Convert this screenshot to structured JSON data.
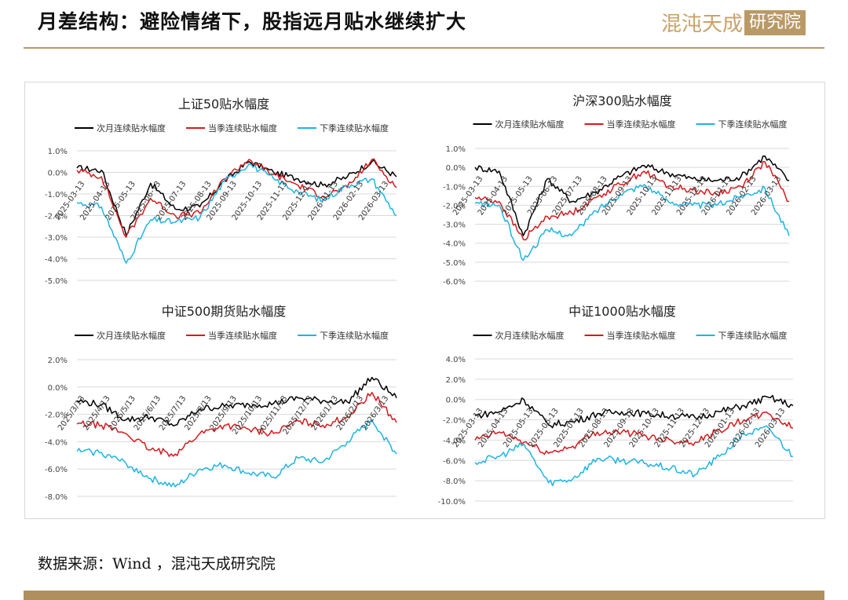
{
  "header": {
    "title": "月差结构：避险情绪下，股指远月贴水继续扩大",
    "brand_part1": "混沌天成",
    "brand_part2": "研究院"
  },
  "footer": {
    "source": "数据来源：Wind ，混沌天成研究院"
  },
  "colors": {
    "next_month": "#000000",
    "current_quarter": "#d7191c",
    "next_quarter": "#1fb4e2",
    "accent": "#b99a67"
  },
  "chart_data": [
    {
      "id": "sz50",
      "type": "line",
      "title": "上证50贴水幅度",
      "legend": [
        "次月连续贴水幅度",
        "当季连续贴水幅度",
        "下季连续贴水幅度"
      ],
      "yticks": [
        "1.0%",
        "0.0%",
        "-1.0%",
        "-2.0%",
        "-3.0%",
        "-4.0%",
        "-5.0%"
      ],
      "ylim": [
        -5,
        1
      ],
      "xticks": [
        "2025-03-13",
        "2025-04-13",
        "2025-05-13",
        "2025-06-13",
        "2025-07-13",
        "2025-08-13",
        "2025-09-13",
        "2025-10-13",
        "2025-11-13",
        "2025-12-13",
        "2026-01-13",
        "2026-02-13",
        "2026-03-13"
      ],
      "x": [
        "2025-03",
        "2025-04",
        "2025-04b",
        "2025-05",
        "2025-06",
        "2025-07",
        "2025-08",
        "2025-09",
        "2025-10",
        "2025-11",
        "2025-12",
        "2026-01",
        "2026-02",
        "2026-03"
      ],
      "series": [
        {
          "name": "次月连续贴水幅度",
          "values": [
            0.2,
            0.1,
            -2.9,
            -0.5,
            -1.7,
            -1.6,
            -0.4,
            0.5,
            0.0,
            -0.3,
            -0.6,
            -0.2,
            0.5,
            -0.2
          ]
        },
        {
          "name": "当季连续贴水幅度",
          "values": [
            0.1,
            -0.2,
            -3.0,
            -1.2,
            -2.0,
            -1.9,
            -0.3,
            0.6,
            -0.1,
            -0.6,
            -1.1,
            -0.7,
            0.6,
            -0.7
          ]
        },
        {
          "name": "下季连续贴水幅度",
          "values": [
            -1.4,
            -1.6,
            -4.2,
            -2.2,
            -2.3,
            -2.1,
            -0.4,
            0.4,
            -0.3,
            -0.9,
            -1.3,
            -0.6,
            -0.3,
            -2.0
          ]
        }
      ]
    },
    {
      "id": "hs300",
      "type": "line",
      "title": "沪深300贴水幅度",
      "legend": [
        "次月连续贴水幅度",
        "当季连续贴水幅度",
        "下季连续贴水幅度"
      ],
      "yticks": [
        "1.0%",
        "0.0%",
        "-1.0%",
        "-2.0%",
        "-3.0%",
        "-4.0%",
        "-5.0%",
        "-6.0%"
      ],
      "ylim": [
        -6,
        1
      ],
      "xticks": [
        "2025-03-13",
        "2025-04-13",
        "2025-05-13",
        "2025-06-13",
        "2025-07-13",
        "2025-08-13",
        "2025-09-13",
        "2025-10-13",
        "2025-11-13",
        "2025-12-13",
        "2026-01-13",
        "2026-02-13",
        "2026-03-13"
      ],
      "x": [
        "2025-03",
        "2025-04",
        "2025-04b",
        "2025-05",
        "2025-06",
        "2025-07",
        "2025-08",
        "2025-09",
        "2025-10",
        "2025-11",
        "2025-12",
        "2026-01",
        "2026-02",
        "2026-03"
      ],
      "series": [
        {
          "name": "次月连续贴水幅度",
          "values": [
            0.0,
            -0.2,
            -3.6,
            -0.6,
            -1.8,
            -1.3,
            -0.5,
            0.1,
            -0.3,
            -0.6,
            -0.7,
            -0.5,
            0.6,
            -0.7
          ]
        },
        {
          "name": "当季连续贴水幅度",
          "values": [
            -1.6,
            -1.8,
            -3.8,
            -2.6,
            -2.4,
            -1.6,
            -0.9,
            -0.2,
            -1.0,
            -1.2,
            -1.4,
            -1.0,
            0.3,
            -1.8
          ]
        },
        {
          "name": "下季连续贴水幅度",
          "values": [
            -1.9,
            -2.0,
            -4.9,
            -3.3,
            -3.6,
            -2.3,
            -1.4,
            -0.9,
            -1.8,
            -2.0,
            -2.0,
            -1.5,
            -1.1,
            -3.6
          ]
        }
      ]
    },
    {
      "id": "zz500",
      "type": "line",
      "title": "中证500期货贴水幅度",
      "legend": [
        "次月连续贴水幅度",
        "当季连续贴水幅度",
        "下季连续贴水幅度"
      ],
      "yticks": [
        "2.0%",
        "0.0%",
        "-2.0%",
        "-4.0%",
        "-6.0%",
        "-8.0%"
      ],
      "ylim": [
        -8,
        2
      ],
      "xticks": [
        "2025/3/13",
        "2025/4/13",
        "2025/5/13",
        "2025/6/13",
        "2025/7/13",
        "2025/8/13",
        "2025/9/13",
        "2025/10/13",
        "2025/11/13",
        "2025/12/13",
        "2026/1/13",
        "2026/2/13",
        "2026/3/13"
      ],
      "x": [
        "2025-03",
        "2025-04",
        "2025-04b",
        "2025-05",
        "2025-06",
        "2025-07",
        "2025-08",
        "2025-09",
        "2025-10",
        "2025-11",
        "2025-12",
        "2026-01",
        "2026-02",
        "2026-03"
      ],
      "series": [
        {
          "name": "次月连续贴水幅度",
          "values": [
            -1.0,
            -1.3,
            -2.4,
            -2.2,
            -2.8,
            -1.6,
            -1.4,
            -1.3,
            -1.2,
            -0.8,
            -1.0,
            -1.1,
            0.7,
            -0.8
          ]
        },
        {
          "name": "当季连续贴水幅度",
          "values": [
            -2.7,
            -2.8,
            -3.4,
            -4.6,
            -4.9,
            -3.4,
            -2.8,
            -3.1,
            -3.4,
            -2.5,
            -2.8,
            -2.2,
            -0.4,
            -2.6
          ]
        },
        {
          "name": "下季连续贴水幅度",
          "values": [
            -4.7,
            -4.8,
            -5.6,
            -6.7,
            -7.3,
            -6.0,
            -5.7,
            -6.3,
            -6.6,
            -5.2,
            -5.5,
            -4.0,
            -2.4,
            -4.9
          ]
        }
      ]
    },
    {
      "id": "zz1000",
      "type": "line",
      "title": "中证1000贴水幅度",
      "legend": [
        "次月连续贴水幅度",
        "当季连续贴水幅度",
        "下季连续贴水幅度"
      ],
      "yticks": [
        "4.0%",
        "2.0%",
        "0.0%",
        "-2.0%",
        "-4.0%",
        "-6.0%",
        "-8.0%",
        "-10.0%"
      ],
      "ylim": [
        -10,
        4
      ],
      "xticks": [
        "2025-03-13",
        "2025-04-13",
        "2025-05-13",
        "2025-06-13",
        "2025-07-13",
        "2025-08-13",
        "2025-09-13",
        "2025-10-13",
        "2025-11-13",
        "2025-12-13",
        "2026-01-13",
        "2026-02-13",
        "2026-03-13"
      ],
      "x": [
        "2025-03",
        "2025-04",
        "2025-04b",
        "2025-05",
        "2025-06",
        "2025-07",
        "2025-08",
        "2025-09",
        "2025-10",
        "2025-11",
        "2025-12",
        "2026-01",
        "2026-02",
        "2026-03"
      ],
      "series": [
        {
          "name": "次月连续贴水幅度",
          "values": [
            -1.6,
            -1.2,
            0.0,
            -2.5,
            -2.2,
            -1.4,
            -1.2,
            -1.4,
            -1.6,
            -1.8,
            -1.2,
            -0.6,
            0.2,
            -0.6
          ]
        },
        {
          "name": "当季连续贴水幅度",
          "values": [
            -4.0,
            -3.2,
            -4.2,
            -5.3,
            -4.6,
            -3.2,
            -3.2,
            -3.6,
            -4.0,
            -4.2,
            -3.0,
            -2.0,
            -1.4,
            -2.8
          ]
        },
        {
          "name": "下季连续贴水幅度",
          "values": [
            -6.2,
            -5.6,
            -4.4,
            -8.2,
            -7.8,
            -5.8,
            -6.0,
            -6.3,
            -6.8,
            -7.4,
            -5.6,
            -3.4,
            -2.8,
            -5.6
          ]
        }
      ]
    }
  ]
}
